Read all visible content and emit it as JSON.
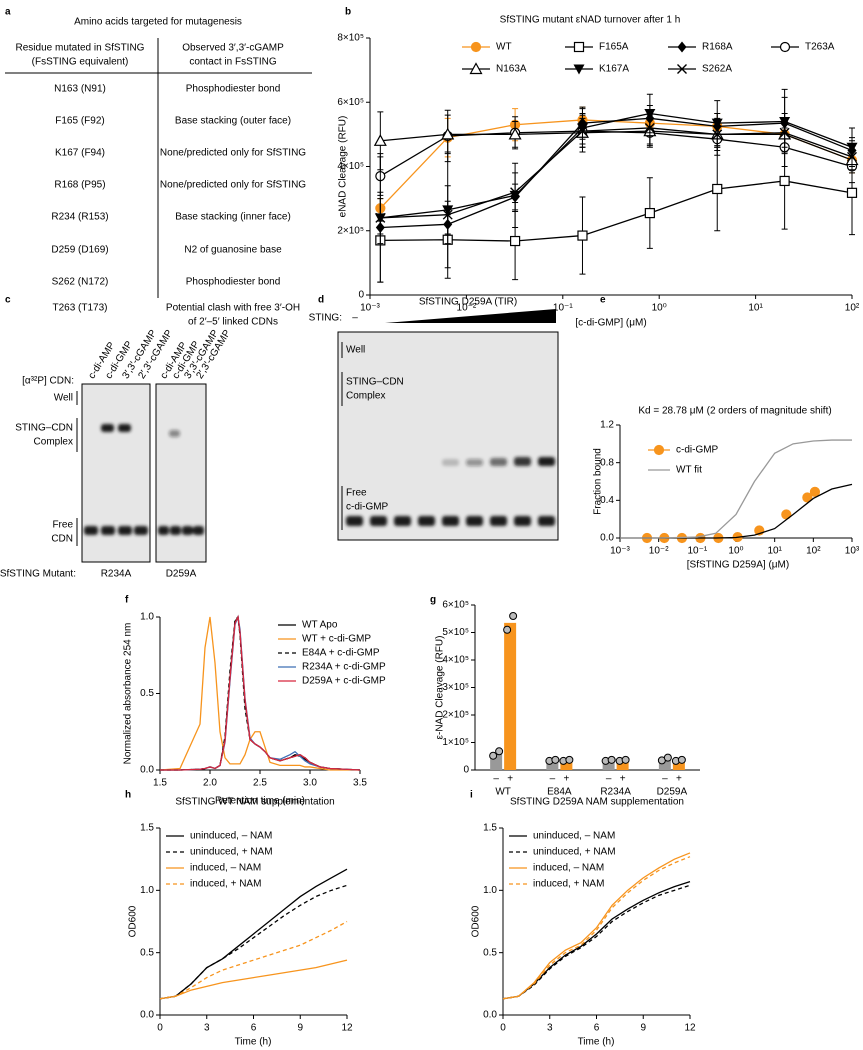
{
  "panel_labels": [
    "a",
    "b",
    "c",
    "d",
    "e",
    "f",
    "g",
    "h",
    "i"
  ],
  "table": {
    "title": "Amino acids targeted for mutagenesis",
    "header": [
      [
        "Residue mutated in SfSTING",
        "(FsSTING equivalent)"
      ],
      [
        "Observed 3′,3′-cGAMP",
        "contact in FsSTING"
      ]
    ],
    "rows": [
      [
        "N163 (N91)",
        [
          "Phosphodiester bond"
        ]
      ],
      [
        "F165 (F92)",
        [
          "Base stacking (outer face)"
        ]
      ],
      [
        "K167 (F94)",
        [
          "None/predicted only for SfSTING"
        ]
      ],
      [
        "R168 (P95)",
        [
          "None/predicted only for SfSTING"
        ]
      ],
      [
        "R234 (R153)",
        [
          "Base stacking (inner face)"
        ]
      ],
      [
        "D259 (D169)",
        [
          "N2 of guanosine base"
        ]
      ],
      [
        "S262 (N172)",
        [
          "Phosphodiester bond"
        ]
      ],
      [
        "T263 (T173)",
        [
          "Potential clash with free 3′-OH",
          "of 2′–5′ linked CDNs"
        ]
      ]
    ]
  },
  "gel_c": {
    "lanes_label": "[α³²P] CDN:",
    "lanes": [
      "c-di-AMP",
      "c-di-GMP",
      "3′,3′-cGAMP",
      "2′,3′-cGAMP"
    ],
    "well": "Well",
    "complex": [
      "STING–CDN",
      "Complex"
    ],
    "free": [
      "Free",
      "CDN"
    ],
    "mutant_label": "SfSTING Mutant:",
    "mutants": [
      "R234A",
      "D259A"
    ]
  },
  "gel_d": {
    "sting_label": "STING:",
    "minus": "–",
    "protein": "SfSTING  D259A (TIR)",
    "well": "Well",
    "complex": [
      "STING–CDN",
      "Complex"
    ],
    "free": [
      "Free",
      "c-di-GMP"
    ]
  },
  "chart_data": [
    {
      "type": "line",
      "title": "SfSTING mutant εNAD turnover after 1 h",
      "xlabel": "[c-di-GMP] (μM)",
      "ylabel": "eNAD Cleavage (RFU)",
      "xscale": "log",
      "x": [
        0.00128,
        0.0064,
        0.032,
        0.16,
        0.8,
        4,
        20,
        100
      ],
      "xlim": [
        0.001,
        100
      ],
      "xticks": [
        {
          "value": 0.001,
          "label": "10⁻³"
        },
        {
          "value": 0.01,
          "label": "10⁻²"
        },
        {
          "value": 0.1,
          "label": "10⁻¹"
        },
        {
          "value": 1,
          "label": "10⁰"
        },
        {
          "value": 10,
          "label": "10¹"
        },
        {
          "value": 100,
          "label": "10²"
        }
      ],
      "ylim": [
        0,
        800000
      ],
      "yticks": [
        0,
        {
          "value": 200000,
          "label": "2×10⁵"
        },
        {
          "value": 400000,
          "label": "4×10⁵"
        },
        {
          "value": 600000,
          "label": "6×10⁵"
        },
        {
          "value": 800000,
          "label": "8×10⁵"
        }
      ],
      "series": [
        {
          "name": "WT",
          "color": "#f7941d",
          "marker": "circle-filled",
          "values": [
            270000,
            490000,
            530000,
            545000,
            535000,
            525000,
            500000,
            420000
          ],
          "errors": [
            30000,
            60000,
            50000,
            40000,
            40000,
            40000,
            50000,
            40000
          ]
        },
        {
          "name": "F165A",
          "color": "#000000",
          "marker": "square-open",
          "values": [
            170000,
            172000,
            168000,
            185000,
            255000,
            330000,
            355000,
            318000
          ],
          "errors": [
            130000,
            120000,
            120000,
            120000,
            110000,
            130000,
            150000,
            130000
          ]
        },
        {
          "name": "R168A",
          "color": "#000000",
          "marker": "diamond-filled",
          "values": [
            210000,
            220000,
            305000,
            535000,
            550000,
            525000,
            535000,
            450000
          ],
          "errors": [
            20000,
            30000,
            40000,
            50000,
            40000,
            40000,
            80000,
            40000
          ]
        },
        {
          "name": "T263A",
          "color": "#000000",
          "marker": "circle-open",
          "values": [
            370000,
            495000,
            505000,
            510000,
            505000,
            485000,
            460000,
            400000
          ],
          "errors": [
            60000,
            80000,
            50000,
            40000,
            40000,
            50000,
            60000,
            50000
          ]
        },
        {
          "name": "N163A",
          "color": "#000000",
          "marker": "triangle-open",
          "values": [
            480000,
            500000,
            500000,
            505000,
            510000,
            500000,
            500000,
            420000
          ],
          "errors": [
            90000,
            60000,
            40000,
            60000,
            50000,
            40000,
            40000,
            30000
          ]
        },
        {
          "name": "K167A",
          "color": "#000000",
          "marker": "triangle-down-filled",
          "values": [
            240000,
            265000,
            310000,
            520000,
            565000,
            535000,
            540000,
            460000
          ],
          "errors": [
            200000,
            180000,
            100000,
            60000,
            60000,
            70000,
            100000,
            60000
          ]
        },
        {
          "name": "S262A",
          "color": "#000000",
          "marker": "x",
          "values": [
            240000,
            250000,
            320000,
            510000,
            520000,
            500000,
            505000,
            430000
          ],
          "errors": [
            80000,
            90000,
            60000,
            50000,
            50000,
            50000,
            60000,
            50000
          ]
        }
      ]
    },
    {
      "type": "line",
      "title": "Kd = 28.78 μM (2 orders of magnitude shift)",
      "xlabel": "[SfSTING D259A] (μM)",
      "ylabel": "Fraction bound",
      "xscale": "log",
      "xlim": [
        0.001,
        1000
      ],
      "xticks": [
        {
          "value": 0.001,
          "label": "10⁻³"
        },
        {
          "value": 0.01,
          "label": "10⁻²"
        },
        {
          "value": 0.1,
          "label": "10⁻¹"
        },
        {
          "value": 1,
          "label": "10⁰"
        },
        {
          "value": 10,
          "label": "10¹"
        },
        {
          "value": 100,
          "label": "10²"
        },
        {
          "value": 1000,
          "label": "10³"
        }
      ],
      "ylim": [
        0,
        1.2
      ],
      "yticks": [
        {
          "value": 0,
          "label": "0.0"
        },
        0.4,
        0.8,
        1.2
      ],
      "series": [
        {
          "name": "c-di-GMP",
          "color": "#f7941d",
          "style": "markers",
          "marker": "circle-filled",
          "x": [
            0.005,
            0.014,
            0.04,
            0.12,
            0.35,
            1.1,
            4,
            20,
            70,
            110
          ],
          "values": [
            0,
            0,
            0,
            0,
            0,
            0.01,
            0.08,
            0.25,
            0.43,
            0.49
          ]
        },
        {
          "color": "#000000",
          "style": "line",
          "x": [
            0.001,
            0.01,
            0.1,
            0.3,
            1,
            3,
            10,
            30,
            100,
            300,
            1000
          ],
          "values": [
            0,
            0,
            0,
            0,
            0.005,
            0.03,
            0.1,
            0.25,
            0.42,
            0.52,
            0.57
          ]
        },
        {
          "name": "WT fit",
          "color": "#999999",
          "style": "line",
          "x": [
            0.001,
            0.01,
            0.1,
            0.3,
            1,
            3,
            10,
            30,
            100,
            300,
            1000
          ],
          "values": [
            0,
            0,
            0.01,
            0.05,
            0.25,
            0.6,
            0.9,
            1.0,
            1.03,
            1.04,
            1.04
          ]
        }
      ]
    },
    {
      "type": "line",
      "xlabel": "Retention time (min)",
      "ylabel": "Normalized absorbance 254 nm",
      "x": [
        1.5,
        1.7,
        1.9,
        1.95,
        2.0,
        2.05,
        2.1,
        2.15,
        2.2,
        2.25,
        2.28,
        2.3,
        2.35,
        2.4,
        2.45,
        2.5,
        2.55,
        2.6,
        2.7,
        2.8,
        2.85,
        2.9,
        2.95,
        3.0,
        3.1,
        3.2,
        3.5
      ],
      "xlim": [
        1.5,
        3.5
      ],
      "xticks": [
        1.5,
        {
          "value": 2,
          "label": "2.0"
        },
        2.5,
        {
          "value": 3,
          "label": "3.0"
        },
        3.5
      ],
      "ylim": [
        0,
        1
      ],
      "yticks": [
        {
          "value": 0,
          "label": "0.0"
        },
        0.5,
        {
          "value": 1,
          "label": "1.0"
        }
      ],
      "series": [
        {
          "name": "WT Apo",
          "color": "#000000",
          "values": [
            0,
            0,
            0.005,
            0.01,
            0.02,
            0.01,
            0.03,
            0.2,
            0.6,
            0.97,
            1.0,
            0.9,
            0.45,
            0.2,
            0.17,
            0.15,
            0.12,
            0.08,
            0.06,
            0.08,
            0.1,
            0.09,
            0.07,
            0.05,
            0.02,
            0.01,
            0
          ]
        },
        {
          "name": "WT + c-di-GMP",
          "color": "#f7941d",
          "values": [
            0,
            0.01,
            0.3,
            0.8,
            1.0,
            0.7,
            0.25,
            0.08,
            0.04,
            0.04,
            0.04,
            0.04,
            0.1,
            0.2,
            0.25,
            0.25,
            0.15,
            0.05,
            0.03,
            0.03,
            0.03,
            0.03,
            0.02,
            0.02,
            0.01,
            0,
            0
          ]
        },
        {
          "name": "E84A + c-di-GMP",
          "color": "#000000",
          "dash": true,
          "values": [
            0,
            0,
            0.005,
            0.01,
            0.02,
            0.01,
            0.03,
            0.22,
            0.65,
            0.98,
            1.0,
            0.88,
            0.4,
            0.2,
            0.17,
            0.15,
            0.12,
            0.08,
            0.06,
            0.08,
            0.09,
            0.1,
            0.08,
            0.05,
            0.02,
            0.01,
            0
          ]
        },
        {
          "name": "R234A + c-di-GMP",
          "color": "#3f6fb5",
          "values": [
            0,
            0,
            0.005,
            0.01,
            0.02,
            0.01,
            0.03,
            0.18,
            0.58,
            0.95,
            1.0,
            0.92,
            0.47,
            0.21,
            0.17,
            0.15,
            0.12,
            0.08,
            0.07,
            0.1,
            0.12,
            0.09,
            0.06,
            0.04,
            0.02,
            0.01,
            0
          ]
        },
        {
          "name": "D259A + c-di-GMP",
          "color": "#d7263d",
          "values": [
            0,
            0,
            0.005,
            0.01,
            0.02,
            0.01,
            0.03,
            0.19,
            0.6,
            0.96,
            1.0,
            0.9,
            0.46,
            0.2,
            0.17,
            0.15,
            0.12,
            0.08,
            0.06,
            0.08,
            0.09,
            0.1,
            0.08,
            0.05,
            0.02,
            0.01,
            0
          ]
        }
      ]
    },
    {
      "type": "bar",
      "ylabel": "ε-NAD Cleavage (RFU)",
      "categories": [
        "WT",
        "E84A",
        "R234A",
        "D259A"
      ],
      "ylim": [
        0,
        600000
      ],
      "yticks": [
        0,
        {
          "value": 100000,
          "label": "1×10⁵"
        },
        {
          "value": 200000,
          "label": "2×10⁵"
        },
        {
          "value": 300000,
          "label": "3×10⁵"
        },
        {
          "value": 400000,
          "label": "4×10⁵"
        },
        {
          "value": 500000,
          "label": "5×10⁵"
        },
        {
          "value": 600000,
          "label": "6×10⁵"
        }
      ],
      "series": [
        {
          "name": "–",
          "color": "#999999",
          "values": [
            60000,
            35000,
            35000,
            40000
          ],
          "points": [
            [
              52000,
              68000
            ],
            [
              33000,
              37000
            ],
            [
              33000,
              37000
            ],
            [
              35000,
              45000
            ]
          ]
        },
        {
          "name": "+",
          "color": "#f7941d",
          "values": [
            535000,
            35000,
            35000,
            35000
          ],
          "points": [
            [
              510000,
              560000
            ],
            [
              33000,
              37000
            ],
            [
              33000,
              37000
            ],
            [
              33000,
              37000
            ]
          ]
        }
      ]
    },
    {
      "type": "line",
      "title": "SfSTING WT NAM supplementation",
      "xlabel": "Time (h)",
      "ylabel": "OD600",
      "x": [
        0,
        1,
        2,
        3,
        4,
        5,
        6,
        7,
        8,
        9,
        10,
        11,
        12
      ],
      "xlim": [
        0,
        12
      ],
      "xticks": [
        0,
        3,
        6,
        9,
        12
      ],
      "ylim": [
        0,
        1.5
      ],
      "yticks": [
        {
          "value": 0,
          "label": "0.0"
        },
        0.5,
        {
          "value": 1,
          "label": "1.0"
        },
        1.5
      ],
      "series": [
        {
          "name": "uninduced, – NAM",
          "color": "#000000",
          "values": [
            0.13,
            0.15,
            0.25,
            0.38,
            0.45,
            0.55,
            0.65,
            0.75,
            0.85,
            0.95,
            1.03,
            1.1,
            1.17
          ]
        },
        {
          "name": "uninduced, + NAM",
          "color": "#000000",
          "dash": true,
          "values": [
            0.13,
            0.15,
            0.25,
            0.38,
            0.45,
            0.53,
            0.62,
            0.71,
            0.8,
            0.88,
            0.95,
            1.0,
            1.04
          ]
        },
        {
          "name": "induced, – NAM",
          "color": "#f7941d",
          "values": [
            0.13,
            0.15,
            0.2,
            0.23,
            0.26,
            0.28,
            0.3,
            0.32,
            0.34,
            0.36,
            0.38,
            0.41,
            0.44
          ]
        },
        {
          "name": "induced, + NAM",
          "color": "#f7941d",
          "dash": true,
          "values": [
            0.13,
            0.15,
            0.22,
            0.3,
            0.36,
            0.4,
            0.44,
            0.48,
            0.52,
            0.56,
            0.62,
            0.68,
            0.75
          ]
        }
      ]
    },
    {
      "type": "line",
      "title": "SfSTING D259A NAM supplementation",
      "xlabel": "Time (h)",
      "ylabel": "OD600",
      "x": [
        0,
        1,
        2,
        3,
        4,
        5,
        6,
        7,
        8,
        9,
        10,
        11,
        12
      ],
      "xlim": [
        0,
        12
      ],
      "xticks": [
        0,
        3,
        6,
        9,
        12
      ],
      "ylim": [
        0,
        1.5
      ],
      "yticks": [
        {
          "value": 0,
          "label": "0.0"
        },
        0.5,
        {
          "value": 1,
          "label": "1.0"
        },
        1.5
      ],
      "series": [
        {
          "name": "uninduced, – NAM",
          "color": "#000000",
          "values": [
            0.13,
            0.15,
            0.25,
            0.38,
            0.48,
            0.55,
            0.65,
            0.77,
            0.85,
            0.92,
            0.98,
            1.03,
            1.07
          ]
        },
        {
          "name": "uninduced, + NAM",
          "color": "#000000",
          "dash": true,
          "values": [
            0.13,
            0.15,
            0.24,
            0.37,
            0.47,
            0.54,
            0.63,
            0.75,
            0.83,
            0.9,
            0.96,
            1.0,
            1.04
          ]
        },
        {
          "name": "induced, – NAM",
          "color": "#f7941d",
          "values": [
            0.13,
            0.15,
            0.26,
            0.42,
            0.52,
            0.58,
            0.7,
            0.88,
            1.0,
            1.1,
            1.18,
            1.25,
            1.3
          ]
        },
        {
          "name": "induced, + NAM",
          "color": "#f7941d",
          "dash": true,
          "values": [
            0.13,
            0.15,
            0.25,
            0.4,
            0.5,
            0.56,
            0.68,
            0.86,
            0.98,
            1.08,
            1.16,
            1.22,
            1.27
          ]
        }
      ]
    }
  ]
}
